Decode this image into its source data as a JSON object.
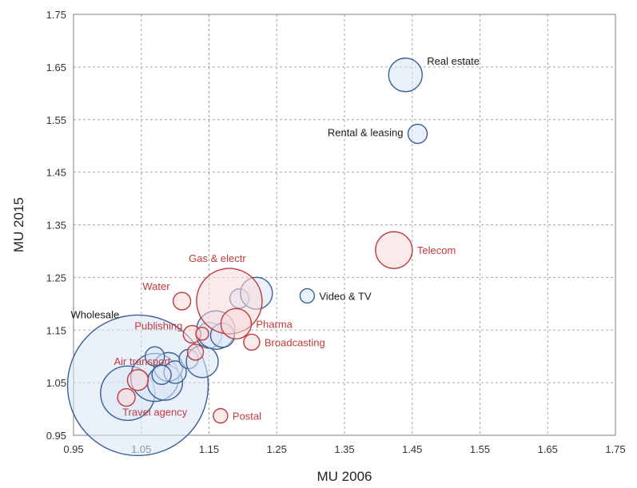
{
  "chart_data": {
    "type": "scatter",
    "subtype": "bubble",
    "xlabel": "MU 2006",
    "ylabel": "MU 2015",
    "xlim": [
      0.95,
      1.75
    ],
    "ylim": [
      0.95,
      1.75
    ],
    "x_ticks": [
      "0.95",
      "1.05",
      "1.15",
      "1.25",
      "1.35",
      "1.45",
      "1.55",
      "1.65",
      "1.75"
    ],
    "y_ticks": [
      "0.95",
      "1.05",
      "1.15",
      "1.25",
      "1.35",
      "1.45",
      "1.55",
      "1.65",
      "1.75"
    ],
    "grid": true,
    "legend": "none",
    "colors": {
      "blue_fill": "#dae6f5",
      "blue_stroke": "#3a5f95",
      "red_fill": "#f8d9d9",
      "red_stroke": "#c0393d",
      "blue_label": "#1a1a1a",
      "red_label": "#c0393d"
    },
    "points": [
      {
        "x": 1.045,
        "y": 1.045,
        "size": 88,
        "color": "blue",
        "label": "Wholesale",
        "label_pos": "left-top"
      },
      {
        "x": 1.03,
        "y": 1.03,
        "size": 34,
        "color": "blue",
        "label": "",
        "label_pos": ""
      },
      {
        "x": 1.07,
        "y": 1.06,
        "size": 30,
        "color": "blue",
        "label": "",
        "label_pos": ""
      },
      {
        "x": 1.085,
        "y": 1.05,
        "size": 22,
        "color": "blue",
        "label": "",
        "label_pos": ""
      },
      {
        "x": 1.09,
        "y": 1.08,
        "size": 18,
        "color": "blue",
        "label": "",
        "label_pos": ""
      },
      {
        "x": 1.1,
        "y": 1.07,
        "size": 14,
        "color": "blue",
        "label": "",
        "label_pos": ""
      },
      {
        "x": 1.08,
        "y": 1.065,
        "size": 12,
        "color": "blue",
        "label": "",
        "label_pos": ""
      },
      {
        "x": 1.07,
        "y": 1.1,
        "size": 12,
        "color": "blue",
        "label": "",
        "label_pos": ""
      },
      {
        "x": 1.12,
        "y": 1.095,
        "size": 12,
        "color": "blue",
        "label": "",
        "label_pos": ""
      },
      {
        "x": 1.14,
        "y": 1.09,
        "size": 20,
        "color": "blue",
        "label": "",
        "label_pos": ""
      },
      {
        "x": 1.15,
        "y": 1.14,
        "size": 16,
        "color": "blue",
        "label": "",
        "label_pos": ""
      },
      {
        "x": 1.16,
        "y": 1.15,
        "size": 24,
        "color": "blue",
        "label": "",
        "label_pos": ""
      },
      {
        "x": 1.17,
        "y": 1.14,
        "size": 15,
        "color": "blue",
        "label": "",
        "label_pos": ""
      },
      {
        "x": 1.195,
        "y": 1.21,
        "size": 12,
        "color": "blue",
        "label": "",
        "label_pos": ""
      },
      {
        "x": 1.22,
        "y": 1.22,
        "size": 20,
        "color": "blue",
        "label": "",
        "label_pos": ""
      },
      {
        "x": 1.295,
        "y": 1.215,
        "size": 9,
        "color": "blue",
        "label": "Video & TV",
        "label_pos": "right"
      },
      {
        "x": 1.44,
        "y": 1.635,
        "size": 21,
        "color": "blue",
        "label": "Real estate",
        "label_pos": "right-top"
      },
      {
        "x": 1.458,
        "y": 1.523,
        "size": 12,
        "color": "blue",
        "label": "Rental & leasing",
        "label_pos": "left"
      },
      {
        "x": 1.18,
        "y": 1.205,
        "size": 41,
        "color": "red",
        "label": "Gas & electr",
        "label_pos": "top-left"
      },
      {
        "x": 1.19,
        "y": 1.162,
        "size": 19,
        "color": "red",
        "label": "Pharma",
        "label_pos": "right"
      },
      {
        "x": 1.213,
        "y": 1.127,
        "size": 10,
        "color": "red",
        "label": "Broadcasting",
        "label_pos": "right"
      },
      {
        "x": 1.423,
        "y": 1.302,
        "size": 23,
        "color": "red",
        "label": "Telecom",
        "label_pos": "right"
      },
      {
        "x": 1.11,
        "y": 1.205,
        "size": 11,
        "color": "red",
        "label": "Water",
        "label_pos": "left-top"
      },
      {
        "x": 1.125,
        "y": 1.142,
        "size": 11,
        "color": "red",
        "label": "Publishing",
        "label_pos": "left-bottom"
      },
      {
        "x": 1.14,
        "y": 1.143,
        "size": 8,
        "color": "red",
        "label": "",
        "label_pos": ""
      },
      {
        "x": 1.13,
        "y": 1.108,
        "size": 10,
        "color": "red",
        "label": "",
        "label_pos": ""
      },
      {
        "x": 1.045,
        "y": 1.055,
        "size": 13,
        "color": "red",
        "label": "Air transport",
        "label_pos": "top-left"
      },
      {
        "x": 1.028,
        "y": 1.022,
        "size": 11,
        "color": "red",
        "label": "Travel agency",
        "label_pos": "below-right"
      },
      {
        "x": 1.167,
        "y": 0.987,
        "size": 9,
        "color": "red",
        "label": "Postal",
        "label_pos": "right"
      }
    ]
  }
}
